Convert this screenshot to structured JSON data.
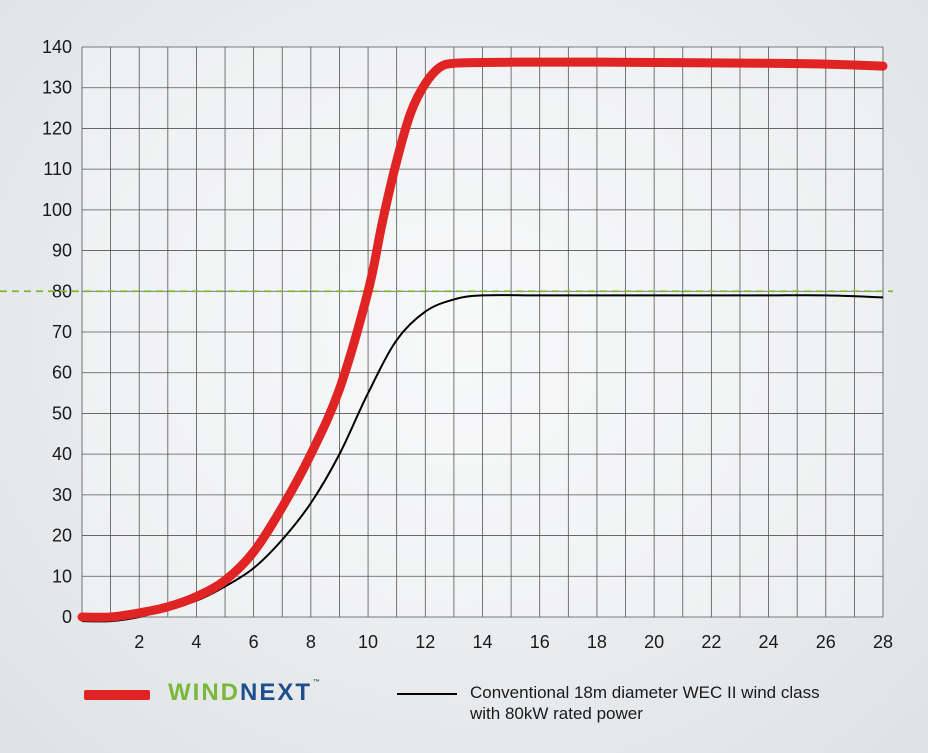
{
  "chart_data": {
    "type": "line",
    "title": "",
    "xlabel": "",
    "ylabel": "",
    "xlim": [
      0,
      28
    ],
    "ylim": [
      0,
      140
    ],
    "x_ticks": [
      2,
      4,
      6,
      8,
      10,
      12,
      14,
      16,
      18,
      20,
      22,
      24,
      26,
      28
    ],
    "y_ticks": [
      0,
      10,
      20,
      30,
      40,
      50,
      60,
      70,
      80,
      90,
      100,
      110,
      120,
      130,
      140
    ],
    "grid": true,
    "reference_line": {
      "y": 80,
      "style": "dashed",
      "color": "#7ab83a"
    },
    "legend_position": "bottom",
    "series": [
      {
        "color": "#e02424",
        "x": [
          0,
          1,
          2,
          3,
          4,
          5,
          6,
          7,
          8,
          9,
          10,
          10.5,
          11,
          11.5,
          12,
          12.5,
          13,
          14,
          16,
          18,
          20,
          22,
          24,
          26,
          28
        ],
        "y": [
          0,
          0,
          1,
          2.5,
          5,
          9,
          16,
          27,
          40,
          56,
          80,
          97,
          112,
          124,
          131,
          135,
          136,
          136.2,
          136.3,
          136.3,
          136.2,
          136.1,
          136,
          135.8,
          135.3
        ]
      },
      {
        "color": "#000000",
        "x": [
          0,
          1,
          2,
          3,
          4,
          5,
          6,
          7,
          8,
          9,
          10,
          11,
          12,
          13,
          14,
          16,
          18,
          20,
          22,
          24,
          26,
          28
        ],
        "y": [
          -1,
          -1,
          0,
          2,
          4,
          7.5,
          12,
          19,
          28,
          40,
          55,
          68,
          75,
          78,
          79,
          79,
          79,
          79,
          79,
          79,
          79,
          78.5
        ]
      }
    ]
  },
  "legend": {
    "logo_part_a": "WIND",
    "logo_part_b": "NEXT",
    "logo_tm": "™",
    "series2_line1": "Conventional 18m diameter WEC II wind class",
    "series2_line2": "with 80kW rated power"
  },
  "colors": {
    "red": "#e02424",
    "black": "#000000",
    "green_dash": "#7ab83a",
    "logo_blue": "#1d4f8c"
  }
}
